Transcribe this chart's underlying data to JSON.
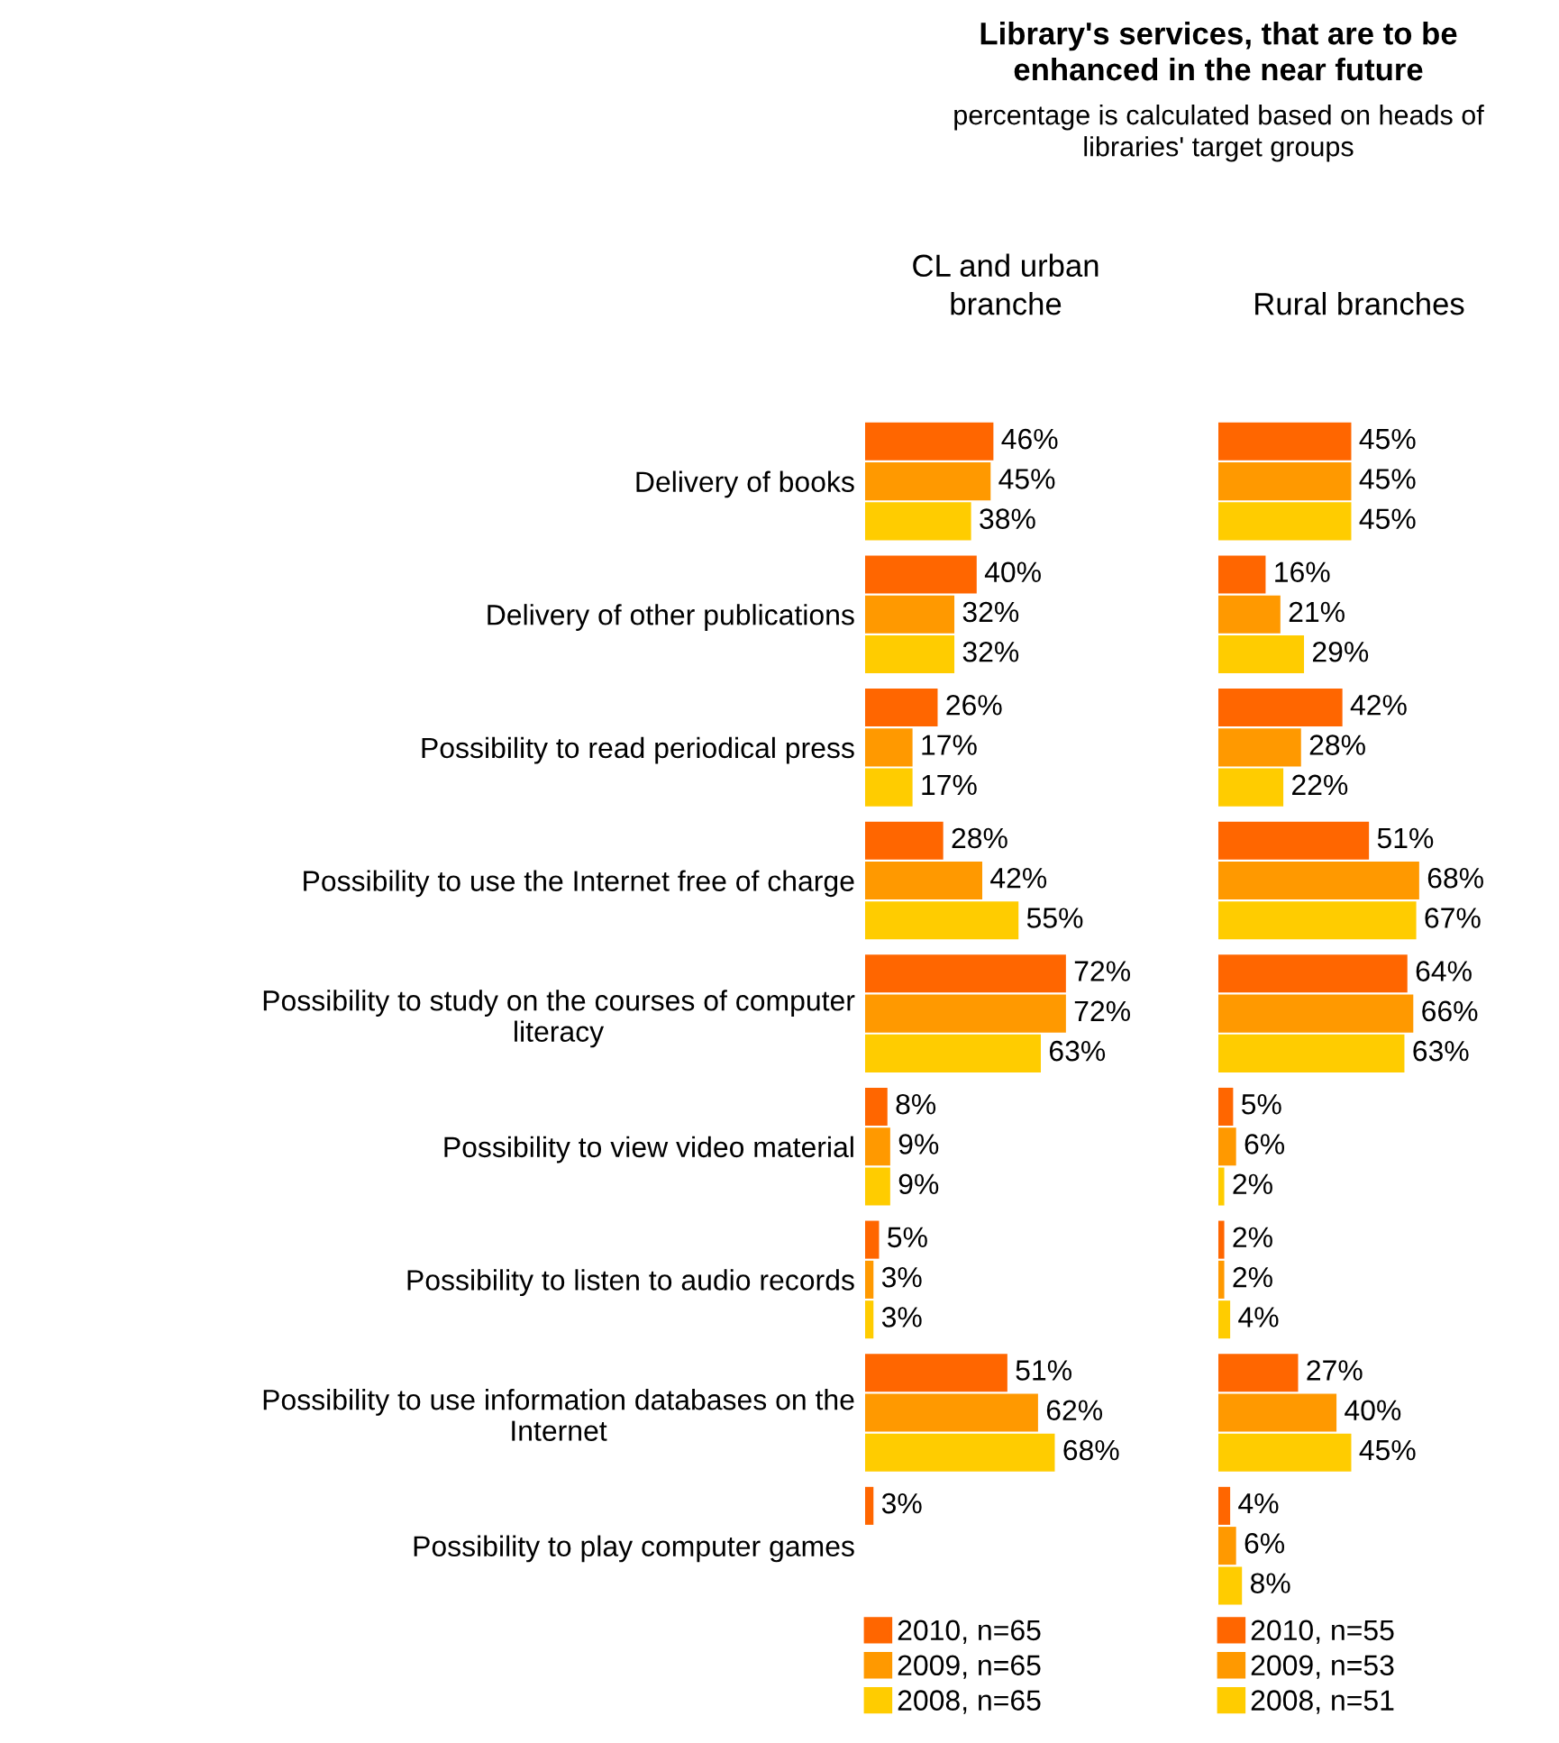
{
  "chart_data": [
    {
      "type": "bar",
      "orientation": "horizontal",
      "title": "CL and urban\nbranche",
      "annotations": [
        "Library's services, that are to be\nenhanced in the near future",
        "percentage is calculated based on heads of\nlibraries' target groups"
      ],
      "categories": [
        "Delivery of books",
        "Delivery of other publications",
        "Possibility to read periodical press",
        "Possibility to use the Internet free of charge",
        "Possibility to study on the courses of computer\nliteracy",
        "Possibility to view video material",
        "Possibility to listen to audio records",
        "Possibility to use information databases on the\nInternet",
        "Possibility to play computer games"
      ],
      "series": [
        {
          "name": "2010, n=65",
          "color": "#ff6600",
          "values": [
            46,
            40,
            26,
            28,
            72,
            8,
            5,
            51,
            3
          ],
          "value_labels": [
            "46%",
            "40%",
            "26%",
            "28%",
            "72%",
            "8%",
            "5%",
            "51%",
            "3%"
          ]
        },
        {
          "name": "2009, n=65",
          "color": "#ff9900",
          "values": [
            45,
            32,
            17,
            42,
            72,
            9,
            3,
            62,
            null
          ],
          "value_labels": [
            "45%",
            "32%",
            "17%",
            "42%",
            "72%",
            "9%",
            "3%",
            "62%",
            null
          ]
        },
        {
          "name": "2008, n=65",
          "color": "#ffcc00",
          "values": [
            38,
            32,
            17,
            55,
            63,
            9,
            3,
            68,
            null
          ],
          "value_labels": [
            "38%",
            "32%",
            "17%",
            "55%",
            "63%",
            "9%",
            "3%",
            "68%",
            null
          ]
        }
      ],
      "legend": "bottom",
      "tick_labels": "y",
      "grid": false
    },
    {
      "type": "bar",
      "orientation": "horizontal",
      "title": "Rural branches",
      "categories": [
        null,
        null,
        null,
        null,
        null,
        null,
        null,
        null,
        null
      ],
      "series": [
        {
          "name": "2010, n=55",
          "color": "#ff6600",
          "values": [
            45,
            16,
            42,
            51,
            64,
            5,
            2,
            27,
            4
          ],
          "value_labels": [
            "45%",
            "16%",
            "42%",
            "51%",
            "64%",
            "5%",
            "2%",
            "27%",
            "4%"
          ]
        },
        {
          "name": "2009, n=53",
          "color": "#ff9900",
          "values": [
            45,
            21,
            28,
            68,
            66,
            6,
            2,
            40,
            6
          ],
          "value_labels": [
            "45%",
            "21%",
            "28%",
            "68%",
            "66%",
            "6%",
            "2%",
            "40%",
            "6%"
          ]
        },
        {
          "name": "2008, n=51",
          "color": "#ffcc00",
          "values": [
            45,
            29,
            22,
            67,
            63,
            2,
            4,
            45,
            8
          ],
          "value_labels": [
            "45%",
            "29%",
            "22%",
            "67%",
            "63%",
            "2%",
            "4%",
            "45%",
            "8%"
          ]
        }
      ],
      "legend": "bottom",
      "tick_labels": false,
      "grid": false
    }
  ]
}
